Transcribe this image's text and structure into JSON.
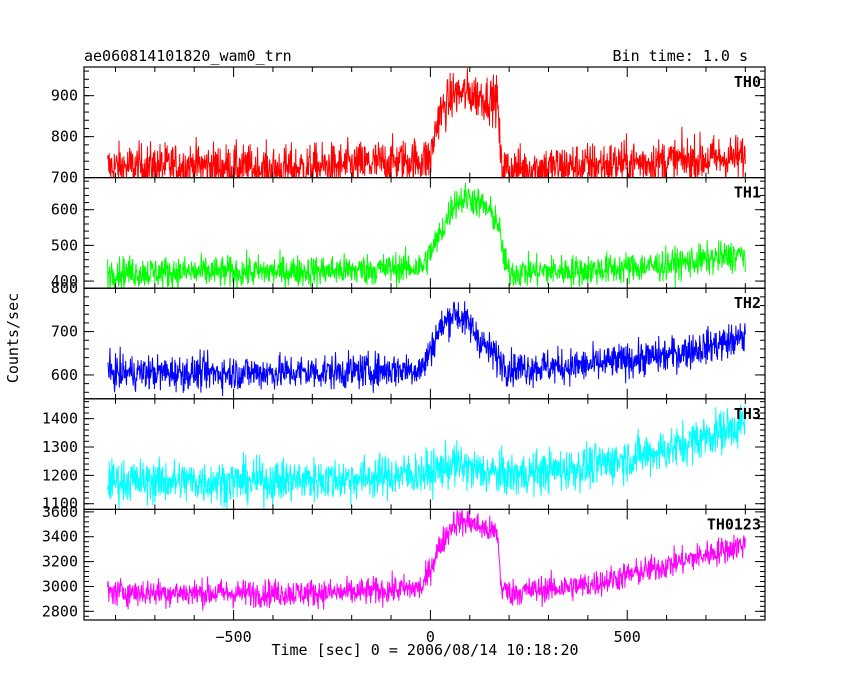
{
  "header": {
    "title": "ae060814101820_wam0_trn",
    "bin_time": "Bin time: 1.0 s"
  },
  "chart_data": {
    "type": "line",
    "title": "ae060814101820_wam0_trn",
    "xlabel": "Time [sec] 0 = 2006/08/14 10:18:20",
    "ylabel": "Counts/sec",
    "xlim": [
      -880,
      850
    ],
    "x_ticks": [
      -500,
      0,
      500
    ],
    "x_tick_labels": [
      "−500",
      "0",
      "500"
    ],
    "grid": false,
    "panels": [
      {
        "name": "TH0",
        "color": "#ff0000",
        "ylim": [
          700,
          970
        ],
        "y_ticks": [
          700,
          800,
          900
        ],
        "y_tick_labels": [
          "700",
          "800",
          "900"
        ],
        "x": [
          -820,
          -600,
          -400,
          -200,
          0,
          20,
          60,
          100,
          140,
          170,
          180,
          200,
          400,
          600,
          800
        ],
        "values": [
          725,
          730,
          720,
          730,
          745,
          850,
          905,
          905,
          895,
          890,
          725,
          720,
          730,
          740,
          750
        ],
        "noise": 28
      },
      {
        "name": "TH1",
        "color": "#00ff00",
        "ylim": [
          380,
          690
        ],
        "y_ticks": [
          400,
          500,
          600
        ],
        "y_tick_labels": [
          "400",
          "500",
          "600"
        ],
        "x": [
          -820,
          -500,
          -200,
          -20,
          20,
          60,
          100,
          140,
          170,
          190,
          200,
          400,
          600,
          800
        ],
        "values": [
          425,
          425,
          430,
          440,
          520,
          620,
          635,
          605,
          570,
          450,
          425,
          430,
          445,
          475
        ],
        "noise": 22
      },
      {
        "name": "TH2",
        "color": "#0000ff",
        "ylim": [
          545,
          800
        ],
        "y_ticks": [
          600,
          700,
          800
        ],
        "y_tick_labels": [
          "600",
          "700",
          "800"
        ],
        "x": [
          -820,
          -500,
          -200,
          -20,
          20,
          60,
          100,
          140,
          200,
          400,
          600,
          800
        ],
        "values": [
          605,
          605,
          608,
          615,
          700,
          745,
          715,
          665,
          615,
          622,
          645,
          685
        ],
        "noise": 20
      },
      {
        "name": "TH3",
        "color": "#00ffff",
        "ylim": [
          1080,
          1470
        ],
        "y_ticks": [
          1100,
          1200,
          1300,
          1400
        ],
        "y_tick_labels": [
          "1100",
          "1200",
          "1300",
          "1400"
        ],
        "x": [
          -820,
          -500,
          -200,
          0,
          60,
          120,
          200,
          400,
          600,
          800
        ],
        "values": [
          1180,
          1178,
          1188,
          1210,
          1240,
          1215,
          1200,
          1230,
          1290,
          1385
        ],
        "noise": 38
      },
      {
        "name": "TH0123",
        "color": "#ff00ff",
        "ylim": [
          2730,
          3620
        ],
        "y_ticks": [
          2800,
          3000,
          3200,
          3400,
          3600
        ],
        "y_tick_labels": [
          "2800",
          "3000",
          "3200",
          "3400",
          "3600"
        ],
        "x": [
          -820,
          -500,
          -200,
          -20,
          20,
          60,
          100,
          140,
          170,
          180,
          200,
          400,
          600,
          800
        ],
        "values": [
          2955,
          2945,
          2950,
          2990,
          3300,
          3520,
          3520,
          3460,
          3430,
          2990,
          2950,
          3010,
          3170,
          3340
        ],
        "noise": 55
      }
    ]
  }
}
